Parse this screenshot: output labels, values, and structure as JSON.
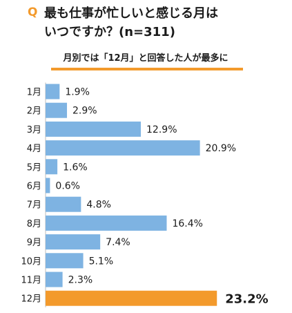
{
  "colors": {
    "accent": "#F39A2C",
    "bar": "#7EB3E2"
  },
  "header": {
    "q_mark": "Q",
    "question": "最も仕事が忙しいと感じる月は\nいつですか？(n=311)",
    "subtitle": "月別では「12月」と回答した人が最多に"
  },
  "chart_data": {
    "type": "bar",
    "orientation": "horizontal",
    "title": "",
    "xlabel": "",
    "ylabel": "",
    "categories": [
      "1月",
      "2月",
      "3月",
      "4月",
      "5月",
      "6月",
      "7月",
      "8月",
      "9月",
      "10月",
      "11月",
      "12月"
    ],
    "values": [
      1.9,
      2.9,
      12.9,
      20.9,
      1.6,
      0.6,
      4.8,
      16.4,
      7.4,
      5.1,
      2.3,
      23.2
    ],
    "value_labels": [
      "1.9%",
      "2.9%",
      "12.9%",
      "20.9%",
      "1.6%",
      "0.6%",
      "4.8%",
      "16.4%",
      "7.4%",
      "5.1%",
      "2.3%",
      "23.2%"
    ],
    "highlight_index": 11,
    "grid": false,
    "legend": "none"
  }
}
